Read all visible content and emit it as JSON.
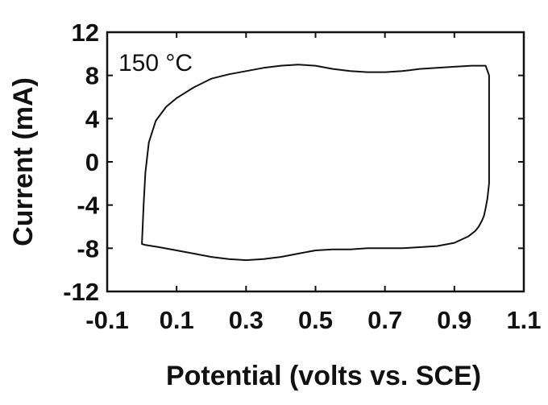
{
  "chart_data": {
    "type": "line",
    "xlabel": "Potential (volts vs. SCE)",
    "ylabel": "Current (mA)",
    "annotation": "150 °C",
    "xlim": [
      -0.1,
      1.1
    ],
    "ylim": [
      -12,
      12
    ],
    "xticks": [
      -0.1,
      0.1,
      0.3,
      0.5,
      0.7,
      0.9,
      1.1
    ],
    "yticks": [
      -12,
      -8,
      -4,
      0,
      4,
      8,
      12
    ],
    "xtick_labels": [
      "-0.1",
      "0.1",
      "0.3",
      "0.5",
      "0.7",
      "0.9",
      "1.1"
    ],
    "ytick_labels": [
      "-12",
      "-8",
      "-4",
      "0",
      "4",
      "8",
      "12"
    ],
    "grid": false,
    "series": [
      {
        "color": "#111111",
        "x": [
          0.0,
          0.005,
          0.01,
          0.02,
          0.04,
          0.07,
          0.1,
          0.15,
          0.2,
          0.25,
          0.3,
          0.35,
          0.4,
          0.45,
          0.5,
          0.55,
          0.6,
          0.65,
          0.7,
          0.75,
          0.8,
          0.85,
          0.9,
          0.95,
          0.99,
          1.0,
          1.0,
          1.0,
          1.0,
          0.995,
          0.99,
          0.985,
          0.98,
          0.97,
          0.96,
          0.94,
          0.9,
          0.85,
          0.8,
          0.75,
          0.7,
          0.65,
          0.6,
          0.55,
          0.5,
          0.45,
          0.4,
          0.35,
          0.3,
          0.25,
          0.2,
          0.15,
          0.1,
          0.05,
          0.01,
          0.0,
          0.005,
          0.01,
          0.02,
          0.04,
          0.07,
          0.1
        ],
        "y": [
          -7.6,
          -4.0,
          -1.0,
          1.8,
          3.8,
          5.1,
          5.9,
          6.9,
          7.7,
          8.1,
          8.4,
          8.7,
          8.9,
          9.0,
          8.9,
          8.6,
          8.4,
          8.3,
          8.3,
          8.4,
          8.6,
          8.7,
          8.8,
          8.9,
          8.9,
          8.0,
          4.0,
          0.0,
          -2.0,
          -3.4,
          -4.3,
          -5.0,
          -5.4,
          -6.0,
          -6.4,
          -6.9,
          -7.5,
          -7.8,
          -7.9,
          -8.0,
          -8.0,
          -8.0,
          -8.1,
          -8.1,
          -8.2,
          -8.5,
          -8.8,
          -9.0,
          -9.1,
          -9.0,
          -8.8,
          -8.5,
          -8.2,
          -7.9,
          -7.7,
          -7.6,
          -4.0,
          -1.0,
          1.8,
          3.8,
          5.1,
          5.9
        ]
      }
    ]
  }
}
